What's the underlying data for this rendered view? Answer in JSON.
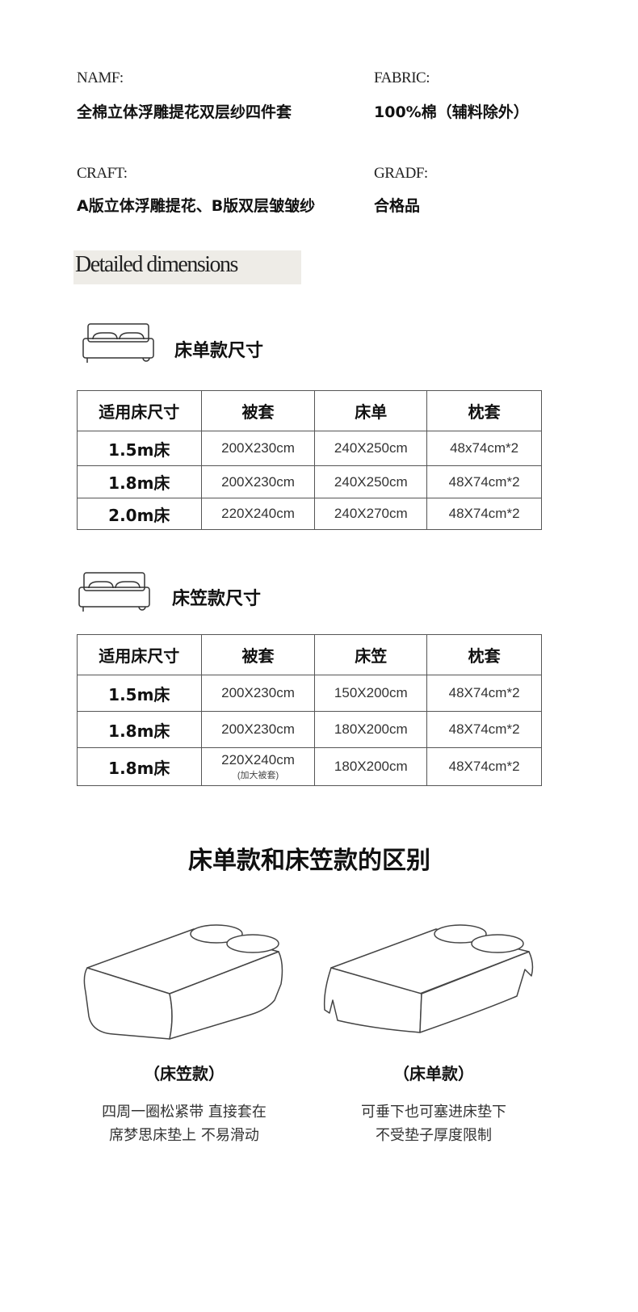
{
  "info": {
    "name_label": "NAMF:",
    "name_value": "全棉立体浮雕提花双层纱四件套",
    "fabric_label": "FABRIC:",
    "fabric_value": "100%棉（辅料除外）",
    "craft_label": "CRAFT:",
    "craft_value": "A版立体浮雕提花、B版双层皱皱纱",
    "grade_label": "GRADF:",
    "grade_value": "合格品"
  },
  "dimensions_title": "Detailed dimensions",
  "flat_sheet": {
    "title": "床单款尺寸",
    "icon": "bed-icon",
    "headers": [
      "适用床尺寸",
      "被套",
      "床单",
      "枕套"
    ],
    "rows": [
      [
        "1.5m床",
        "200X230cm",
        "240X250cm",
        "48x74cm*2"
      ],
      [
        "1.8m床",
        "200X230cm",
        "240X250cm",
        "48X74cm*2"
      ],
      [
        "2.0m床",
        "220X240cm",
        "240X270cm",
        "48X74cm*2"
      ]
    ]
  },
  "fitted_sheet": {
    "title": "床笠款尺寸",
    "icon": "bed-icon",
    "headers": [
      "适用床尺寸",
      "被套",
      "床笠",
      "枕套"
    ],
    "rows": [
      [
        "1.5m床",
        "200X230cm",
        "150X200cm",
        "48X74cm*2"
      ],
      [
        "1.8m床",
        "200X230cm",
        "180X200cm",
        "48X74cm*2"
      ],
      [
        "1.8m床",
        "220X240cm",
        "180X200cm",
        "48X74cm*2"
      ]
    ],
    "row3_note": "(加大被套)"
  },
  "difference": {
    "title": "床单款和床笠款的区别",
    "fitted": {
      "caption": "（床笠款）",
      "line1": "四周一圈松紧带 直接套在",
      "line2": "席梦思床垫上 不易滑动"
    },
    "flat": {
      "caption": "（床单款）",
      "line1": "可垂下也可塞进床垫下",
      "line2": "不受垫子厚度限制"
    }
  }
}
